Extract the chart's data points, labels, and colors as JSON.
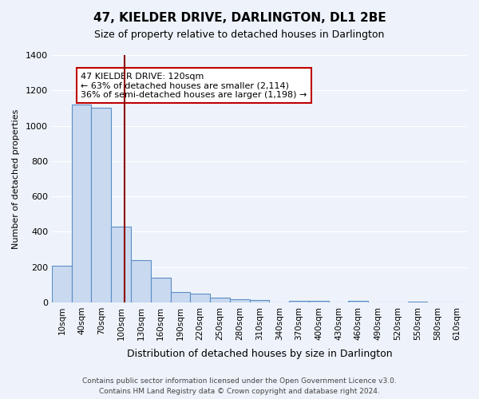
{
  "title": "47, KIELDER DRIVE, DARLINGTON, DL1 2BE",
  "subtitle": "Size of property relative to detached houses in Darlington",
  "xlabel": "Distribution of detached houses by size in Darlington",
  "ylabel": "Number of detached properties",
  "bin_labels": [
    "10sqm",
    "40sqm",
    "70sqm",
    "100sqm",
    "130sqm",
    "160sqm",
    "190sqm",
    "220sqm",
    "250sqm",
    "280sqm",
    "310sqm",
    "340sqm",
    "370sqm",
    "400sqm",
    "430sqm",
    "460sqm",
    "490sqm",
    "520sqm",
    "550sqm",
    "580sqm",
    "610sqm"
  ],
  "bar_values": [
    210,
    1120,
    1100,
    430,
    240,
    140,
    60,
    48,
    25,
    20,
    14,
    0,
    10,
    8,
    0,
    8,
    0,
    0,
    5,
    0,
    0
  ],
  "bar_color": "#c9d9f0",
  "bar_edge_color": "#5b8ec4",
  "background_color": "#eef3fb",
  "grid_color": "#ffffff",
  "vline_x": 4,
  "vline_color": "#8b0000",
  "annotation_title": "47 KIELDER DRIVE: 120sqm",
  "annotation_line1": "← 63% of detached houses are smaller (2,114)",
  "annotation_line2": "36% of semi-detached houses are larger (1,198) →",
  "annotation_box_color": "#ffffff",
  "annotation_box_edge": "#c00000",
  "ylim": [
    0,
    1400
  ],
  "yticks": [
    0,
    200,
    400,
    600,
    800,
    1000,
    1200,
    1400
  ],
  "footer1": "Contains HM Land Registry data © Crown copyright and database right 2024.",
  "footer2": "Contains public sector information licensed under the Open Government Licence v3.0."
}
